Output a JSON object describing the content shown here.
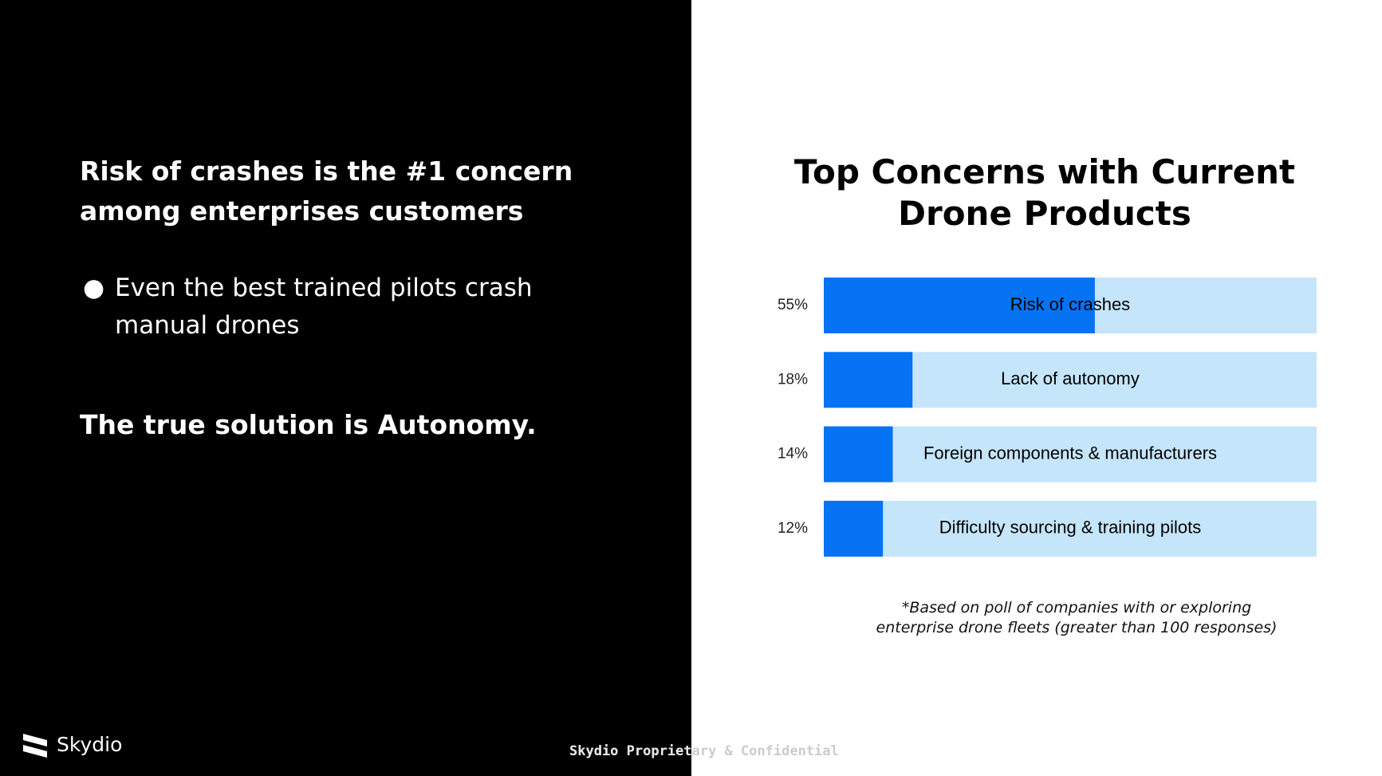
{
  "left": {
    "headline": "Risk of crashes is the #1 concern among enterprises customers",
    "bullet_symbol": "●",
    "bullet_text": "Even the best trained pilots crash manual drones",
    "conclusion": "The true solution is Autonomy."
  },
  "brand": {
    "name": "Skydio",
    "logo_icon": "skydio-logo-icon"
  },
  "footer": {
    "confidential": "Skydio Proprietary & Confidential"
  },
  "footnote": {
    "line1": "*Based on poll of companies with or exploring",
    "line2": "enterprise drone fleets (greater than 100 responses)"
  },
  "colors": {
    "left_background": "#000000",
    "bar_fill": "#0573f3",
    "bar_track": "#c5e5fb",
    "text_dark": "#000000",
    "text_light": "#ffffff"
  },
  "chart_data": {
    "type": "bar",
    "orientation": "horizontal",
    "title": "Top Concerns with Current Drone Products",
    "categories": [
      "Risk of crashes",
      "Lack of autonomy",
      "Foreign components & manufacturers",
      "Difficulty sourcing & training pilots"
    ],
    "values": [
      55,
      18,
      14,
      12
    ],
    "value_labels": [
      "55%",
      "18%",
      "14%",
      "12%"
    ],
    "unit": "%",
    "xlim": [
      0,
      100
    ],
    "grid": false,
    "legend": "none"
  }
}
